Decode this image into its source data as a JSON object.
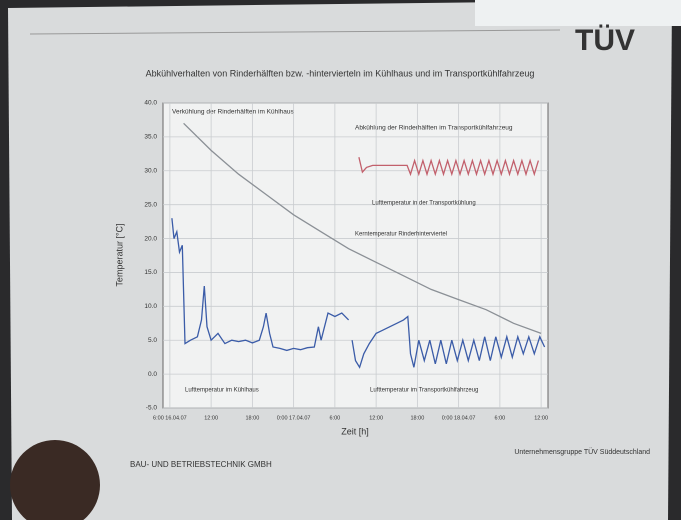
{
  "chart_data": {
    "type": "line",
    "title": "Abkühlverhalten von Rinderhälften bzw. -hintervierteln im Kühlhaus und im Transportkühlfahrzeug",
    "xlabel": "Zeit [h]",
    "ylabel": "Temperatur [°C]",
    "xlim": [
      -1,
      55
    ],
    "ylim": [
      -5,
      40
    ],
    "yticks": [
      {
        "value": 40,
        "label": "40.0"
      },
      {
        "value": 35,
        "label": "35.0"
      },
      {
        "value": 30,
        "label": "30.0"
      },
      {
        "value": 25,
        "label": "25.0"
      },
      {
        "value": 20,
        "label": "20.0"
      },
      {
        "value": 15,
        "label": "15.0"
      },
      {
        "value": 10,
        "label": "10.0"
      },
      {
        "value": 5,
        "label": "5.0"
      },
      {
        "value": 0,
        "label": "0.0"
      },
      {
        "value": -5,
        "label": "-5.0"
      }
    ],
    "xticks": [
      {
        "value": 0,
        "label": "6:00 16.04.07"
      },
      {
        "value": 6,
        "label": "12:00"
      },
      {
        "value": 12,
        "label": "18:00"
      },
      {
        "value": 18,
        "label": "0:00 17.04.07"
      },
      {
        "value": 24,
        "label": "6:00"
      },
      {
        "value": 30,
        "label": "12:00"
      },
      {
        "value": 36,
        "label": "18:00"
      },
      {
        "value": 42,
        "label": "0:00 18.04.07"
      },
      {
        "value": 48,
        "label": "6:00"
      },
      {
        "value": 54,
        "label": "12:00"
      }
    ],
    "grid": true,
    "series": [
      {
        "name": "Kerntemperatur Rinderhinterviertel",
        "color": "#8b9096",
        "x": [
          2,
          6,
          10,
          14,
          18,
          22,
          26,
          30,
          34,
          38,
          42,
          46,
          50,
          54
        ],
        "values": [
          37,
          33,
          29.5,
          26.5,
          23.5,
          21,
          18.5,
          16.5,
          14.5,
          12.5,
          11,
          9.5,
          7.5,
          6
        ]
      },
      {
        "name": "Lufttemperatur im Kühlhaus",
        "color": "#3b5ca8",
        "x": [
          0.3,
          0.6,
          1,
          1.4,
          1.8,
          2.2,
          3,
          4,
          4.6,
          5,
          5.4,
          6,
          7,
          8,
          9,
          10,
          11,
          12,
          13,
          13.6,
          14,
          14.5,
          15,
          16,
          17,
          18,
          19,
          20,
          21,
          21.6,
          22,
          23,
          24,
          25,
          26
        ],
        "values": [
          23,
          20,
          21,
          18,
          19,
          4.5,
          5,
          5.5,
          8,
          13,
          7,
          5,
          6,
          4.5,
          5,
          4.8,
          5,
          4.6,
          5,
          7,
          9,
          6,
          4,
          3.8,
          3.5,
          3.8,
          3.6,
          3.9,
          4,
          7,
          5,
          9,
          8.5,
          9,
          8
        ]
      },
      {
        "name": "Lufttemperatur im Transportkühlfahrzeug",
        "color": "#3b5ca8",
        "x": [
          26.5,
          27,
          27.6,
          28.2,
          29,
          30,
          31,
          32,
          33,
          34,
          34.6,
          35,
          35.5,
          36.2,
          37,
          37.8,
          38.6,
          39.4,
          40.2,
          41,
          41.8,
          42.6,
          43.4,
          44.2,
          45,
          45.8,
          46.6,
          47.4,
          48.2,
          49,
          49.8,
          50.6,
          51.4,
          52.2,
          53,
          53.8,
          54.5
        ],
        "values": [
          5,
          2,
          1,
          3,
          4.5,
          6,
          6.5,
          7,
          7.5,
          8,
          8.5,
          3,
          1,
          5,
          2,
          5,
          1.5,
          5,
          1.5,
          5,
          2,
          5,
          2,
          5,
          2,
          5.5,
          2,
          5.5,
          2.5,
          5.5,
          2.5,
          5.5,
          3,
          5.5,
          3,
          5.5,
          4
        ]
      },
      {
        "name": "Lufttemperatur in der Transportkühlung",
        "color": "#c2606c",
        "x": [
          27.5,
          28,
          28.6,
          29.5,
          31,
          33,
          34.5,
          35,
          35.6,
          36.2,
          36.8,
          37.4,
          38,
          38.6,
          39.2,
          39.8,
          40.4,
          41,
          41.6,
          42.2,
          42.8,
          43.4,
          44,
          44.6,
          45.2,
          45.8,
          46.4,
          47,
          47.6,
          48.2,
          48.8,
          49.4,
          50,
          50.6,
          51.2,
          51.8,
          52.4,
          53,
          53.6
        ],
        "values": [
          32,
          29.8,
          30.5,
          30.8,
          30.8,
          30.8,
          30.8,
          29.5,
          31.5,
          29.5,
          31.5,
          29.5,
          31.5,
          29.5,
          31.5,
          29.5,
          31.5,
          29.5,
          31.5,
          29.5,
          31.5,
          29.5,
          31.5,
          29.5,
          31.5,
          29.5,
          31.5,
          29.5,
          31.5,
          29.5,
          31.5,
          29.5,
          31.5,
          29.5,
          31.5,
          29.5,
          31.5,
          29.5,
          31.5
        ]
      }
    ],
    "annotations": [
      "Verkühlung der Rinderhälften im Kühlhaus",
      "Abkühlung der Rinderhälften im Transportkühlfahrzeug"
    ]
  },
  "footer": {
    "left": "BAU- UND BETRIEBSTECHNIK GMBH",
    "right": "Unternehmensgruppe TÜV Süddeutschland",
    "logo": "TÜV"
  }
}
